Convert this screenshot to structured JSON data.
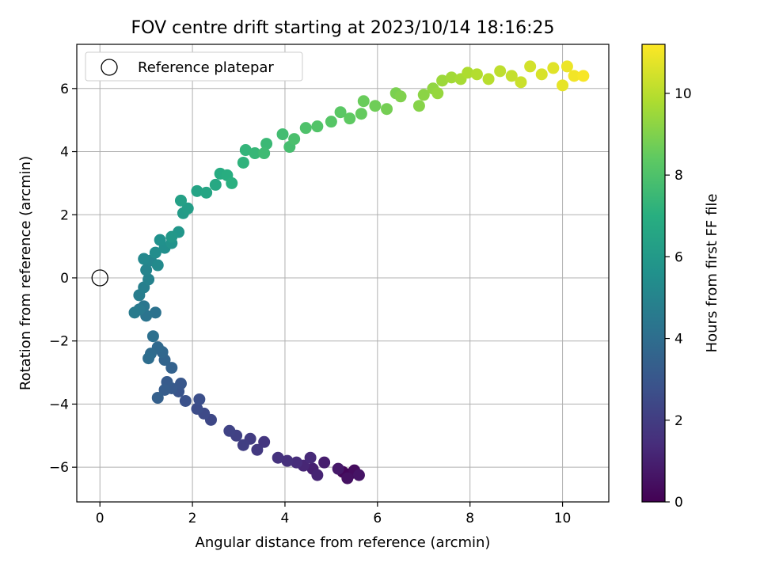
{
  "chart_data": {
    "type": "scatter",
    "title": "FOV centre drift starting at 2023/10/14 18:16:25",
    "xlabel": "Angular distance from reference (arcmin)",
    "ylabel": "Rotation from reference (arcmin)",
    "xlim": [
      -0.5,
      11.0
    ],
    "ylim": [
      -7.1,
      7.4
    ],
    "xticks": [
      "0",
      "2",
      "4",
      "6",
      "8",
      "10"
    ],
    "yticks": [
      "−6",
      "−4",
      "−2",
      "0",
      "2",
      "4",
      "6"
    ],
    "grid": true,
    "legend": {
      "location": "upper-left",
      "entries": [
        "Reference platepar"
      ]
    },
    "reference_point": {
      "x": 0,
      "y": 0
    },
    "colorbar": {
      "label": "Hours from first FF file",
      "range": [
        0,
        11.2
      ],
      "ticks": [
        "0",
        "2",
        "4",
        "6",
        "8",
        "10"
      ],
      "colormap": "viridis"
    },
    "drift_path": {
      "description_points": "x, y (arcmin), hours",
      "points": [
        [
          5.4,
          -6.22,
          0.0
        ],
        [
          5.25,
          -6.15,
          0.2
        ],
        [
          5.5,
          -6.1,
          0.35
        ],
        [
          5.35,
          -6.35,
          0.5
        ],
        [
          5.6,
          -6.25,
          0.6
        ],
        [
          5.15,
          -6.05,
          0.75
        ],
        [
          4.85,
          -5.85,
          0.9
        ],
        [
          4.6,
          -6.05,
          1.0
        ],
        [
          4.7,
          -6.25,
          1.1
        ],
        [
          4.4,
          -5.95,
          1.2
        ],
        [
          4.55,
          -5.7,
          1.3
        ],
        [
          4.25,
          -5.85,
          1.4
        ],
        [
          4.05,
          -5.8,
          1.5
        ],
        [
          3.85,
          -5.7,
          1.6
        ],
        [
          3.55,
          -5.2,
          1.75
        ],
        [
          3.4,
          -5.45,
          1.85
        ],
        [
          3.25,
          -5.1,
          1.95
        ],
        [
          3.1,
          -5.3,
          2.05
        ],
        [
          2.95,
          -5.0,
          2.15
        ],
        [
          2.8,
          -4.85,
          2.25
        ],
        [
          2.4,
          -4.5,
          2.4
        ],
        [
          2.25,
          -4.3,
          2.5
        ],
        [
          2.1,
          -4.15,
          2.6
        ],
        [
          2.15,
          -3.85,
          2.7
        ],
        [
          1.85,
          -3.9,
          2.8
        ],
        [
          1.7,
          -3.6,
          2.9
        ],
        [
          1.75,
          -3.35,
          3.0
        ],
        [
          1.55,
          -3.5,
          3.1
        ],
        [
          1.45,
          -3.3,
          3.2
        ],
        [
          1.4,
          -3.55,
          3.3
        ],
        [
          1.25,
          -3.8,
          3.4
        ],
        [
          1.55,
          -2.85,
          3.5
        ],
        [
          1.4,
          -2.6,
          3.6
        ],
        [
          1.35,
          -2.35,
          3.7
        ],
        [
          1.25,
          -2.2,
          3.8
        ],
        [
          1.1,
          -2.4,
          3.9
        ],
        [
          1.05,
          -2.55,
          4.0
        ],
        [
          1.15,
          -1.85,
          4.1
        ],
        [
          1.2,
          -1.1,
          4.2
        ],
        [
          1.0,
          -1.2,
          4.3
        ],
        [
          0.95,
          -0.9,
          4.4
        ],
        [
          0.85,
          -1.0,
          4.5
        ],
        [
          0.75,
          -1.1,
          4.6
        ],
        [
          0.85,
          -0.55,
          4.7
        ],
        [
          0.95,
          -0.3,
          4.8
        ],
        [
          1.05,
          -0.05,
          4.9
        ],
        [
          1.0,
          0.25,
          5.0
        ],
        [
          1.1,
          0.55,
          5.1
        ],
        [
          0.95,
          0.6,
          5.2
        ],
        [
          1.25,
          0.4,
          5.3
        ],
        [
          1.2,
          0.8,
          5.4
        ],
        [
          1.4,
          0.95,
          5.5
        ],
        [
          1.3,
          1.2,
          5.6
        ],
        [
          1.55,
          1.1,
          5.7
        ],
        [
          1.7,
          1.45,
          5.85
        ],
        [
          1.55,
          1.3,
          5.95
        ],
        [
          1.8,
          2.05,
          6.1
        ],
        [
          1.9,
          2.2,
          6.2
        ],
        [
          1.75,
          2.45,
          6.3
        ],
        [
          2.1,
          2.75,
          6.45
        ],
        [
          2.3,
          2.7,
          6.55
        ],
        [
          2.5,
          2.95,
          6.7
        ],
        [
          2.6,
          3.3,
          6.85
        ],
        [
          2.75,
          3.25,
          6.95
        ],
        [
          2.85,
          3.0,
          7.05
        ],
        [
          3.1,
          3.65,
          7.2
        ],
        [
          3.15,
          4.05,
          7.3
        ],
        [
          3.35,
          3.95,
          7.4
        ],
        [
          3.6,
          4.25,
          7.5
        ],
        [
          3.55,
          3.95,
          7.6
        ],
        [
          3.95,
          4.55,
          7.7
        ],
        [
          4.1,
          4.15,
          7.8
        ],
        [
          4.2,
          4.4,
          7.9
        ],
        [
          4.45,
          4.75,
          8.0
        ],
        [
          4.7,
          4.8,
          8.1
        ],
        [
          5.0,
          4.95,
          8.2
        ],
        [
          5.2,
          5.25,
          8.3
        ],
        [
          5.4,
          5.05,
          8.4
        ],
        [
          5.65,
          5.2,
          8.5
        ],
        [
          5.7,
          5.6,
          8.6
        ],
        [
          5.95,
          5.45,
          8.7
        ],
        [
          6.2,
          5.35,
          8.8
        ],
        [
          6.4,
          5.85,
          8.9
        ],
        [
          6.5,
          5.75,
          9.0
        ],
        [
          6.9,
          5.45,
          9.1
        ],
        [
          7.0,
          5.8,
          9.2
        ],
        [
          7.2,
          6.0,
          9.3
        ],
        [
          7.3,
          5.85,
          9.4
        ],
        [
          7.4,
          6.25,
          9.5
        ],
        [
          7.6,
          6.35,
          9.6
        ],
        [
          7.8,
          6.3,
          9.7
        ],
        [
          7.95,
          6.5,
          9.8
        ],
        [
          8.15,
          6.45,
          9.9
        ],
        [
          8.4,
          6.3,
          10.0
        ],
        [
          8.65,
          6.55,
          10.1
        ],
        [
          8.9,
          6.4,
          10.2
        ],
        [
          9.1,
          6.2,
          10.3
        ],
        [
          9.3,
          6.7,
          10.45
        ],
        [
          9.55,
          6.45,
          10.55
        ],
        [
          9.8,
          6.65,
          10.7
        ],
        [
          10.0,
          6.1,
          10.8
        ],
        [
          10.1,
          6.7,
          10.9
        ],
        [
          10.25,
          6.4,
          11.0
        ],
        [
          10.45,
          6.4,
          11.1
        ]
      ]
    }
  }
}
